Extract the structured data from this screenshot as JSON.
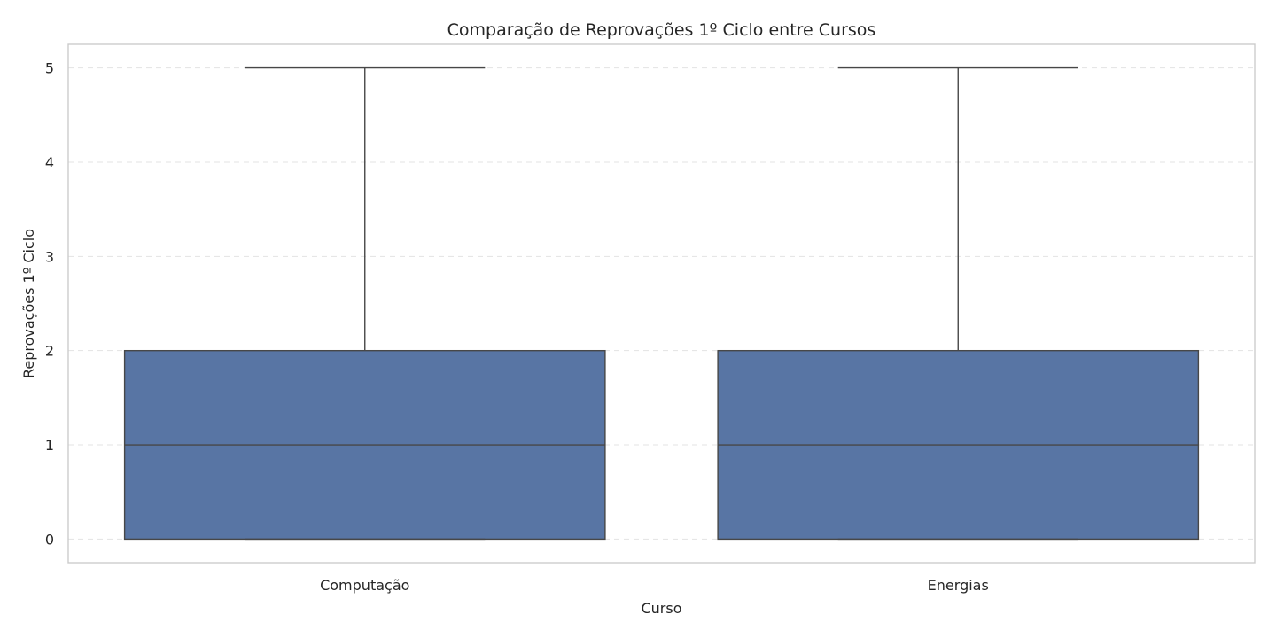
{
  "chart_data": {
    "type": "box",
    "title": "Comparação de Reprovações 1º Ciclo entre Cursos",
    "xlabel": "Curso",
    "ylabel": "Reprovações 1º Ciclo",
    "ylim": [
      -0.25,
      5.25
    ],
    "yticks": [
      0,
      1,
      2,
      3,
      4,
      5
    ],
    "ytick_labels": [
      "0",
      "1",
      "2",
      "3",
      "4",
      "5"
    ],
    "grid": true,
    "box_color": "#5875a4",
    "line_color": "#474747",
    "categories": [
      "Computação",
      "Energias"
    ],
    "boxes": [
      {
        "label": "Computação",
        "whisker_low": 0,
        "q1": 0,
        "median": 1,
        "q3": 2,
        "whisker_high": 5
      },
      {
        "label": "Energias",
        "whisker_low": 0,
        "q1": 0,
        "median": 1,
        "q3": 2,
        "whisker_high": 5
      }
    ]
  }
}
